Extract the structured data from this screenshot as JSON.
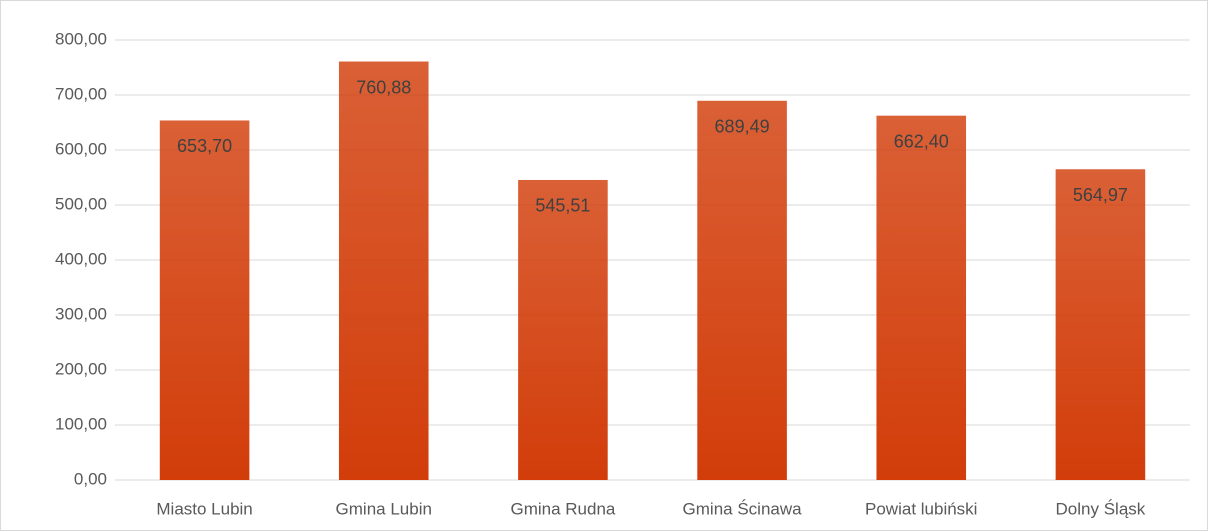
{
  "chart_data": {
    "type": "bar",
    "categories": [
      "Miasto Lubin",
      "Gmina Lubin",
      "Gmina Rudna",
      "Gmina Ścinawa",
      "Powiat lubiński",
      "Dolny Śląsk"
    ],
    "values": [
      653.7,
      760.88,
      545.51,
      689.49,
      662.4,
      564.97
    ],
    "value_labels": [
      "653,70",
      "760,88",
      "545,51",
      "689,49",
      "662,40",
      "564,97"
    ],
    "color": "#d23d0a",
    "ylim": [
      0,
      800
    ],
    "yticks": [
      {
        "value": 0,
        "label": "0,00"
      },
      {
        "value": 100,
        "label": "100,00"
      },
      {
        "value": 200,
        "label": "200,00"
      },
      {
        "value": 300,
        "label": "300,00"
      },
      {
        "value": 400,
        "label": "400,00"
      },
      {
        "value": 500,
        "label": "500,00"
      },
      {
        "value": 600,
        "label": "600,00"
      },
      {
        "value": 700,
        "label": "700,00"
      },
      {
        "value": 800,
        "label": "800,00"
      }
    ],
    "grid": true
  }
}
